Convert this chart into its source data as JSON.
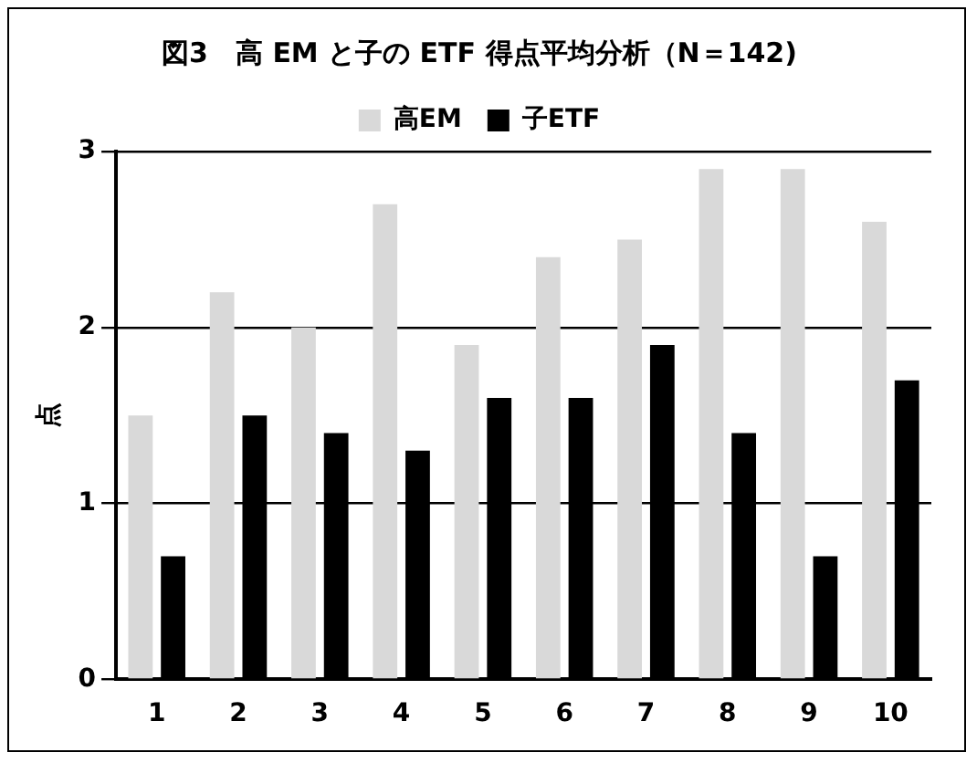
{
  "chart_data": {
    "type": "bar",
    "title": "図3　高 EM と子の ETF 得点平均分析（N＝142)",
    "ylabel": "点",
    "categories": [
      "1",
      "2",
      "3",
      "4",
      "5",
      "6",
      "7",
      "8",
      "9",
      "10"
    ],
    "series": [
      {
        "name": "高EM",
        "color": "#d9d9d9",
        "values": [
          1.5,
          2.2,
          2.0,
          2.7,
          1.9,
          2.4,
          2.5,
          2.9,
          2.9,
          2.6
        ]
      },
      {
        "name": "子ETF",
        "color": "#000000",
        "values": [
          0.7,
          1.5,
          1.4,
          1.3,
          1.6,
          1.6,
          1.9,
          1.4,
          0.7,
          1.7
        ]
      }
    ],
    "ylim": [
      0,
      3
    ],
    "yticks": [
      0,
      1,
      2,
      3
    ],
    "grid": "y",
    "legend": "top"
  }
}
